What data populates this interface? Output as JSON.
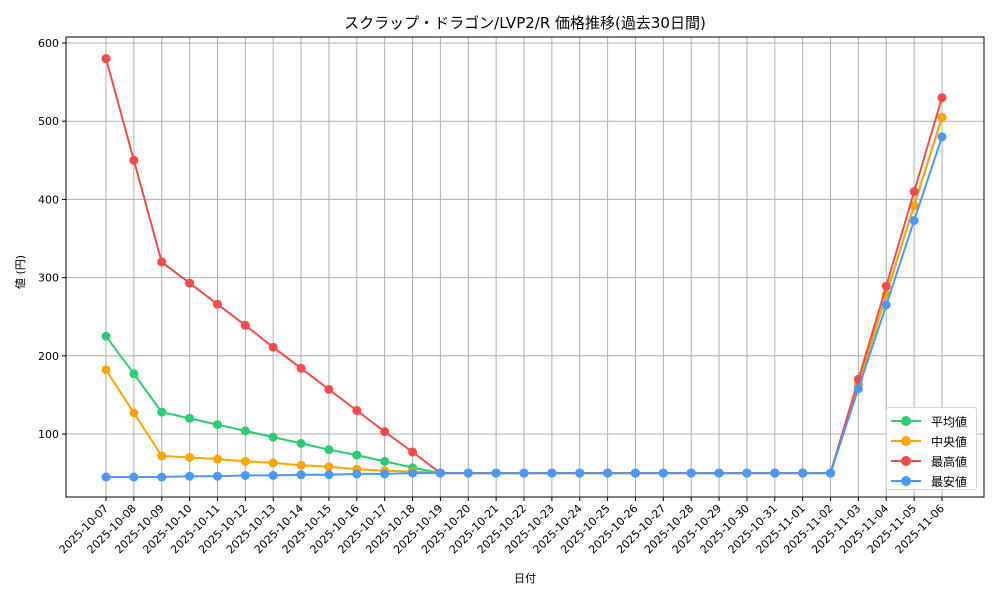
{
  "chart_data": {
    "type": "line",
    "title": "スクラップ・ドラゴン/LVP2/R 価格推移(過去30日間)",
    "xlabel": "日付",
    "ylabel": "値 (円)",
    "ylim": [
      16,
      607
    ],
    "yticks": [
      100,
      200,
      300,
      400,
      500,
      600
    ],
    "grid": true,
    "legend_position": "lower right",
    "x": [
      "2025-10-07",
      "2025-10-08",
      "2025-10-09",
      "2025-10-10",
      "2025-10-11",
      "2025-10-12",
      "2025-10-13",
      "2025-10-14",
      "2025-10-15",
      "2025-10-16",
      "2025-10-17",
      "2025-10-18",
      "2025-10-19",
      "2025-10-20",
      "2025-10-21",
      "2025-10-22",
      "2025-10-23",
      "2025-10-24",
      "2025-10-25",
      "2025-10-26",
      "2025-10-27",
      "2025-10-28",
      "2025-10-29",
      "2025-10-30",
      "2025-10-31",
      "2025-11-01",
      "2025-11-02",
      "2025-11-03",
      "2025-11-04",
      "2025-11-05",
      "2025-11-06"
    ],
    "series": [
      {
        "name": "平均値",
        "color": "#2ecc71",
        "values": [
          225,
          177,
          128,
          120,
          112,
          104,
          96,
          88,
          80,
          73,
          65,
          57,
          50,
          50,
          50,
          50,
          50,
          50,
          50,
          50,
          50,
          50,
          50,
          50,
          50,
          50,
          50,
          163,
          278,
          392,
          505
        ]
      },
      {
        "name": "中央値",
        "color": "#ffa500",
        "values": [
          182,
          127,
          72,
          70,
          68,
          65,
          63,
          60,
          58,
          55,
          53,
          52,
          50,
          50,
          50,
          50,
          50,
          50,
          50,
          50,
          50,
          50,
          50,
          50,
          50,
          50,
          50,
          163,
          278,
          392,
          505
        ]
      },
      {
        "name": "最高値",
        "color": "#f44b4b",
        "values": [
          580,
          450,
          320,
          293,
          266,
          239,
          211,
          184,
          157,
          130,
          103,
          77,
          50,
          50,
          50,
          50,
          50,
          50,
          50,
          50,
          50,
          50,
          50,
          50,
          50,
          50,
          50,
          170,
          289,
          410,
          530
        ]
      },
      {
        "name": "最安値",
        "color": "#4a9af5",
        "values": [
          45,
          45,
          45,
          46,
          46,
          47,
          47,
          48,
          48,
          49,
          49,
          50,
          50,
          50,
          50,
          50,
          50,
          50,
          50,
          50,
          50,
          50,
          50,
          50,
          50,
          50,
          50,
          158,
          265,
          373,
          480
        ]
      }
    ]
  }
}
